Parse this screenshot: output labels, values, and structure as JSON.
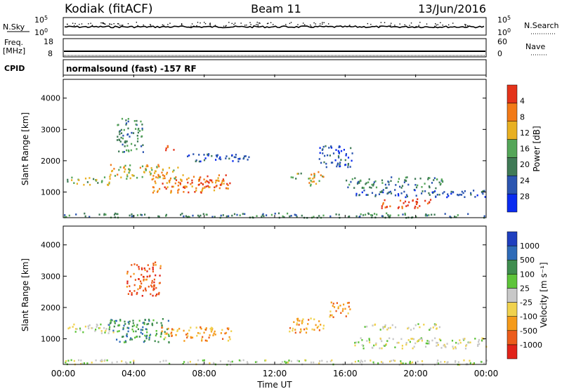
{
  "header": {
    "station": "Kodiak (fitACF)",
    "beam": "Beam 11",
    "date": "13/Jun/2016"
  },
  "summary_panels": {
    "nsky": {
      "label": "N.Sky",
      "ticks": [
        {
          "base": "10",
          "exp": "5"
        },
        {
          "base": "10",
          "exp": "0"
        }
      ],
      "right_label": "N.Search",
      "right_ticks": [
        {
          "base": "10",
          "exp": "5"
        },
        {
          "base": "10",
          "exp": "0"
        }
      ]
    },
    "freq": {
      "label_line1": "Freq.",
      "label_line2": "[MHz]",
      "ticks": [
        "18",
        "8"
      ],
      "right_label": "Nave",
      "right_ticks": [
        "60",
        "0"
      ]
    },
    "cpid": {
      "label": "CPID",
      "text": "normalsound (fast) -157 RF"
    }
  },
  "x_axis": {
    "title": "Time UT",
    "ticks": [
      "00:00",
      "04:00",
      "08:00",
      "12:00",
      "16:00",
      "20:00",
      "00:00"
    ]
  },
  "colors": {
    "power": [
      "#0a2bf0",
      "#2b55b0",
      "#3f7a56",
      "#54a658",
      "#e8b022",
      "#f27a17",
      "#e4331a"
    ],
    "velocity": [
      "#e1231a",
      "#ec5c1b",
      "#f59a1a",
      "#f0d24e",
      "#c8c8c8",
      "#5ec43a",
      "#3f8d4f",
      "#2e6bb8",
      "#1f3fbf"
    ]
  },
  "chart_data": [
    {
      "type": "heatmap",
      "title": "Power",
      "xlabel": "Time UT",
      "ylabel": "Slant Range [km]",
      "x_range_hours": [
        0,
        24
      ],
      "y_ticks": [
        1000,
        2000,
        3000,
        4000
      ],
      "ylim": [
        180,
        4600
      ],
      "colorbar": {
        "label": "Power [dB]",
        "tick_labels": [
          "4",
          "8",
          "12",
          "16",
          "20",
          "24",
          "28"
        ]
      },
      "regions": [
        {
          "t0": 0.2,
          "t1": 2.8,
          "r0": 1250,
          "r1": 1500,
          "level": 3
        },
        {
          "t0": 2.5,
          "t1": 6.5,
          "r0": 1450,
          "r1": 1900,
          "level": 4
        },
        {
          "t0": 5.0,
          "t1": 9.5,
          "r0": 1000,
          "r1": 1600,
          "level": 5
        },
        {
          "t0": 7.5,
          "t1": 9.0,
          "r0": 1200,
          "r1": 1450,
          "level": 6
        },
        {
          "t0": 3.0,
          "t1": 4.5,
          "r0": 2300,
          "r1": 3400,
          "level": 2
        },
        {
          "t0": 5.5,
          "t1": 6.3,
          "r0": 2350,
          "r1": 2550,
          "level": 6
        },
        {
          "t0": 7.0,
          "t1": 10.5,
          "r0": 2000,
          "r1": 2300,
          "level": 1
        },
        {
          "t0": 13.8,
          "t1": 14.8,
          "r0": 1200,
          "r1": 1700,
          "level": 4
        },
        {
          "t0": 12.8,
          "t1": 13.5,
          "r0": 1450,
          "r1": 1650,
          "level": 3
        },
        {
          "t0": 14.5,
          "t1": 16.5,
          "r0": 1800,
          "r1": 2500,
          "level": 1
        },
        {
          "t0": 16.0,
          "t1": 21.5,
          "r0": 1150,
          "r1": 1500,
          "level": 2
        },
        {
          "t0": 18.0,
          "t1": 21.0,
          "r0": 500,
          "r1": 800,
          "level": 6
        },
        {
          "t0": 16.5,
          "t1": 24.0,
          "r0": 850,
          "r1": 1100,
          "level": 1
        },
        {
          "t0": 0.0,
          "t1": 24.0,
          "r0": 200,
          "r1": 350,
          "level": 2
        }
      ]
    },
    {
      "type": "heatmap",
      "title": "Velocity",
      "xlabel": "Time UT",
      "ylabel": "Slant Range [km]",
      "x_range_hours": [
        0,
        24
      ],
      "y_ticks": [
        1000,
        2000,
        3000,
        4000
      ],
      "ylim": [
        180,
        4600
      ],
      "colorbar": {
        "label": "Velocity [m s⁻¹]",
        "tick_labels": [
          "1000",
          "500",
          "100",
          "25",
          "-25",
          "-100",
          "-500",
          "-1000"
        ]
      },
      "regions": [
        {
          "t0": 0.2,
          "t1": 3.0,
          "r0": 1200,
          "r1": 1500,
          "level": 4
        },
        {
          "t0": 2.5,
          "t1": 6.0,
          "r0": 900,
          "r1": 1700,
          "level": 6
        },
        {
          "t0": 5.5,
          "t1": 9.5,
          "r0": 950,
          "r1": 1400,
          "level": 2
        },
        {
          "t0": 3.5,
          "t1": 5.5,
          "r0": 2400,
          "r1": 3500,
          "level": 1
        },
        {
          "t0": 12.8,
          "t1": 14.8,
          "r0": 1200,
          "r1": 1700,
          "level": 2
        },
        {
          "t0": 15.0,
          "t1": 16.3,
          "r0": 1700,
          "r1": 2200,
          "level": 2
        },
        {
          "t0": 17.0,
          "t1": 21.5,
          "r0": 1300,
          "r1": 1500,
          "level": 4
        },
        {
          "t0": 16.5,
          "t1": 24.0,
          "r0": 700,
          "r1": 1050,
          "level": 4
        },
        {
          "t0": 0.0,
          "t1": 24.0,
          "r0": 200,
          "r1": 350,
          "level": 4
        }
      ]
    }
  ]
}
